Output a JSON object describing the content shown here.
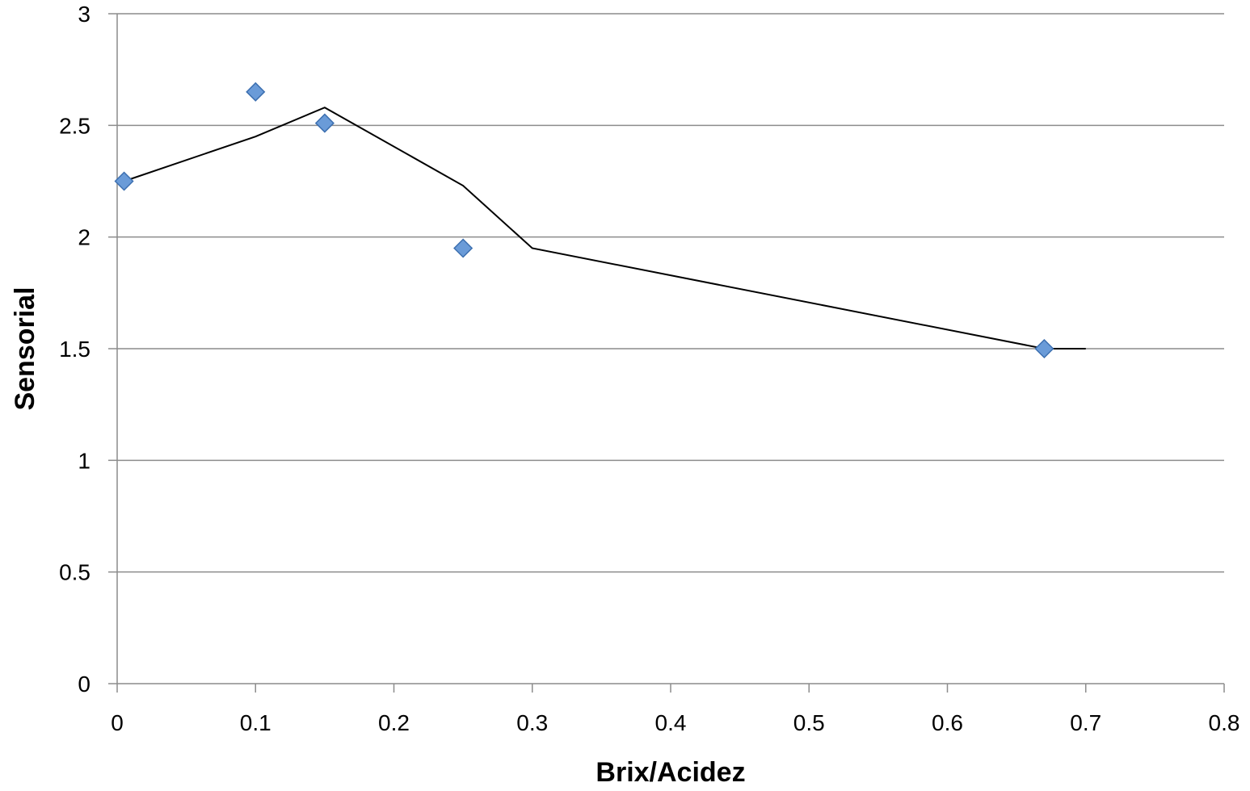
{
  "chart_data": {
    "type": "scatter",
    "title": "",
    "xlabel": "Brix/Acidez",
    "ylabel": "Sensorial",
    "xlim": [
      0,
      0.8
    ],
    "ylim": [
      0,
      3
    ],
    "x_ticks": [
      "0",
      "0.1",
      "0.2",
      "0.3",
      "0.4",
      "0.5",
      "0.6",
      "0.7",
      "0.8"
    ],
    "y_ticks": [
      "0",
      "0.5",
      "1",
      "1.5",
      "2",
      "2.5",
      "3"
    ],
    "grid": {
      "horizontal": true,
      "vertical": false
    },
    "legend": "none",
    "series": [
      {
        "type": "scatter",
        "marker": "diamond",
        "color": "#6a9bd8",
        "points": [
          {
            "x": 0.005,
            "y": 2.25
          },
          {
            "x": 0.1,
            "y": 2.65
          },
          {
            "x": 0.15,
            "y": 2.51
          },
          {
            "x": 0.25,
            "y": 1.95
          },
          {
            "x": 0.67,
            "y": 1.5
          }
        ]
      },
      {
        "type": "line",
        "color": "#000000",
        "points": [
          {
            "x": 0.005,
            "y": 2.25
          },
          {
            "x": 0.1,
            "y": 2.45
          },
          {
            "x": 0.15,
            "y": 2.58
          },
          {
            "x": 0.25,
            "y": 2.23
          },
          {
            "x": 0.3,
            "y": 1.95
          },
          {
            "x": 0.67,
            "y": 1.5
          },
          {
            "x": 0.7,
            "y": 1.5
          }
        ]
      }
    ]
  }
}
